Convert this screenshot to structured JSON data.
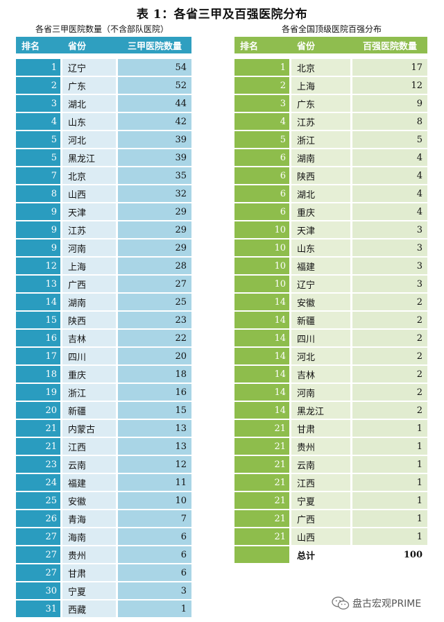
{
  "title": "表 1：各省三甲及百强医院分布",
  "left_table": {
    "subtitle": "各省三甲医院数量（不含部队医院）",
    "headers": [
      "排名",
      "省份",
      "三甲医院数量"
    ],
    "rows": [
      [
        "1",
        "辽宁",
        "54"
      ],
      [
        "2",
        "广东",
        "52"
      ],
      [
        "3",
        "湖北",
        "44"
      ],
      [
        "4",
        "山东",
        "42"
      ],
      [
        "5",
        "河北",
        "39"
      ],
      [
        "5",
        "黑龙江",
        "39"
      ],
      [
        "7",
        "北京",
        "35"
      ],
      [
        "8",
        "山西",
        "32"
      ],
      [
        "9",
        "天津",
        "29"
      ],
      [
        "9",
        "江苏",
        "29"
      ],
      [
        "9",
        "河南",
        "29"
      ],
      [
        "12",
        "上海",
        "28"
      ],
      [
        "13",
        "广西",
        "27"
      ],
      [
        "14",
        "湖南",
        "25"
      ],
      [
        "15",
        "陕西",
        "23"
      ],
      [
        "16",
        "吉林",
        "22"
      ],
      [
        "17",
        "四川",
        "20"
      ],
      [
        "18",
        "重庆",
        "18"
      ],
      [
        "19",
        "浙江",
        "16"
      ],
      [
        "20",
        "新疆",
        "15"
      ],
      [
        "21",
        "内蒙古",
        "13"
      ],
      [
        "21",
        "江西",
        "13"
      ],
      [
        "23",
        "云南",
        "12"
      ],
      [
        "24",
        "福建",
        "11"
      ],
      [
        "25",
        "安徽",
        "10"
      ],
      [
        "26",
        "青海",
        "7"
      ],
      [
        "27",
        "海南",
        "6"
      ],
      [
        "27",
        "贵州",
        "6"
      ],
      [
        "27",
        "甘肃",
        "6"
      ],
      [
        "30",
        "宁夏",
        "3"
      ],
      [
        "31",
        "西藏",
        "1"
      ]
    ]
  },
  "right_table": {
    "subtitle": "各省全国顶级医院百强分布",
    "headers": [
      "排名",
      "省份",
      "百强医院数量"
    ],
    "rows": [
      [
        "1",
        "北京",
        "17"
      ],
      [
        "2",
        "上海",
        "12"
      ],
      [
        "3",
        "广东",
        "9"
      ],
      [
        "4",
        "江苏",
        "8"
      ],
      [
        "5",
        "浙江",
        "5"
      ],
      [
        "6",
        "湖南",
        "4"
      ],
      [
        "6",
        "陕西",
        "4"
      ],
      [
        "6",
        "湖北",
        "4"
      ],
      [
        "6",
        "重庆",
        "4"
      ],
      [
        "10",
        "天津",
        "3"
      ],
      [
        "10",
        "山东",
        "3"
      ],
      [
        "10",
        "福建",
        "3"
      ],
      [
        "10",
        "辽宁",
        "3"
      ],
      [
        "14",
        "安徽",
        "2"
      ],
      [
        "14",
        "新疆",
        "2"
      ],
      [
        "14",
        "四川",
        "2"
      ],
      [
        "14",
        "河北",
        "2"
      ],
      [
        "14",
        "吉林",
        "2"
      ],
      [
        "14",
        "河南",
        "2"
      ],
      [
        "14",
        "黑龙江",
        "2"
      ],
      [
        "21",
        "甘肃",
        "1"
      ],
      [
        "21",
        "贵州",
        "1"
      ],
      [
        "21",
        "云南",
        "1"
      ],
      [
        "21",
        "江西",
        "1"
      ],
      [
        "21",
        "宁夏",
        "1"
      ],
      [
        "21",
        "广西",
        "1"
      ],
      [
        "21",
        "山西",
        "1"
      ]
    ],
    "total": {
      "rank": "",
      "label": "总计",
      "value": "100"
    }
  },
  "watermark": {
    "text": "盘古宏观PRIME",
    "icon": "wechat-icon"
  }
}
